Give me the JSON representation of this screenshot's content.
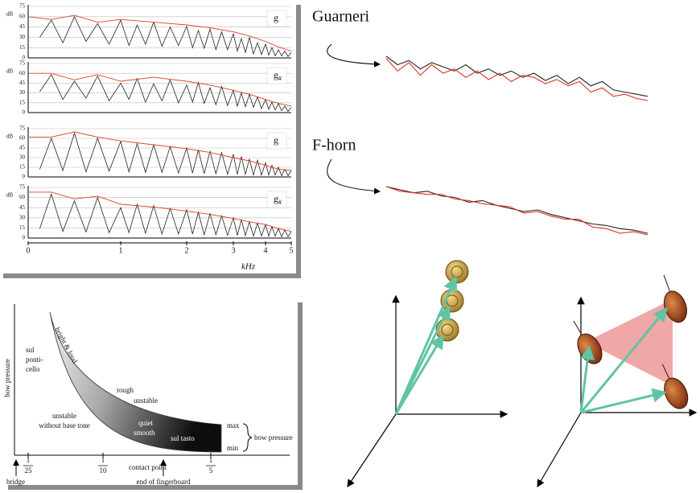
{
  "chart_data": [
    {
      "type": "line",
      "label": "g",
      "ylabel": "dB",
      "xlim": [
        0,
        5
      ],
      "ylim": [
        0,
        75
      ],
      "yticks": [
        0,
        15,
        30,
        45,
        60,
        75
      ],
      "grid": true,
      "x": [
        0.125,
        0.25,
        0.375,
        0.5,
        0.625,
        0.75,
        0.875,
        1,
        1.125,
        1.25,
        1.375,
        1.5,
        1.625,
        1.75,
        1.875,
        2,
        2.125,
        2.25,
        2.375,
        2.5,
        2.625,
        2.75,
        2.875,
        3,
        3.125,
        3.25,
        3.375,
        3.5,
        3.625,
        3.75,
        3.875,
        4,
        4.125,
        4.25,
        4.375,
        4.5,
        4.625,
        4.75,
        4.875,
        5
      ],
      "series": [
        {
          "color": "#222222",
          "values": [
            30,
            55,
            22,
            60,
            24,
            50,
            20,
            55,
            18,
            48,
            20,
            52,
            17,
            45,
            18,
            46,
            15,
            40,
            14,
            42,
            12,
            38,
            12,
            35,
            10,
            28,
            8,
            30,
            6,
            22,
            5,
            20,
            4,
            15,
            3,
            12,
            3,
            10,
            2,
            8
          ]
        },
        {
          "color": "#d9412b",
          "x": [
            0,
            0.25,
            0.5,
            0.75,
            1,
            1.5,
            2,
            2.5,
            3,
            3.5,
            4,
            4.5,
            5
          ],
          "values": [
            60,
            56,
            62,
            52,
            56,
            52,
            48,
            44,
            38,
            32,
            24,
            16,
            10
          ]
        }
      ]
    },
    {
      "type": "line",
      "label": "g",
      "label_sub": "#",
      "ylabel": "dB",
      "xlim": [
        0,
        5
      ],
      "ylim": [
        0,
        75
      ],
      "yticks": [
        0,
        15,
        30,
        45,
        60,
        75
      ],
      "grid": true,
      "x": [
        0.125,
        0.25,
        0.375,
        0.5,
        0.625,
        0.75,
        0.875,
        1,
        1.125,
        1.25,
        1.375,
        1.5,
        1.625,
        1.75,
        1.875,
        2,
        2.125,
        2.25,
        2.375,
        2.5,
        2.625,
        2.75,
        2.875,
        3,
        3.125,
        3.25,
        3.375,
        3.5,
        3.625,
        3.75,
        3.875,
        4,
        4.125,
        4.25,
        4.375,
        4.5,
        4.625,
        4.75,
        4.875,
        5
      ],
      "series": [
        {
          "color": "#222222",
          "values": [
            32,
            58,
            20,
            48,
            22,
            56,
            18,
            45,
            20,
            52,
            16,
            44,
            18,
            50,
            15,
            42,
            16,
            46,
            14,
            38,
            12,
            40,
            11,
            34,
            10,
            30,
            9,
            28,
            8,
            24,
            6,
            20,
            5,
            16,
            4,
            14,
            3,
            10,
            2,
            8
          ]
        },
        {
          "color": "#d9412b",
          "x": [
            0,
            0.25,
            0.5,
            0.75,
            1,
            1.5,
            2,
            2.5,
            3,
            3.5,
            4,
            4.5,
            5
          ],
          "values": [
            60,
            60,
            50,
            58,
            48,
            54,
            48,
            42,
            34,
            28,
            20,
            14,
            10
          ]
        }
      ]
    },
    {
      "type": "line",
      "label": "g",
      "ylabel": "dB",
      "xlim": [
        0,
        5
      ],
      "ylim": [
        0,
        75
      ],
      "yticks": [
        0,
        15,
        30,
        45,
        60,
        75
      ],
      "grid": true,
      "x": [
        0.125,
        0.25,
        0.375,
        0.5,
        0.625,
        0.75,
        0.875,
        1,
        1.125,
        1.25,
        1.375,
        1.5,
        1.625,
        1.75,
        1.875,
        2,
        2.125,
        2.25,
        2.375,
        2.5,
        2.625,
        2.75,
        2.875,
        3,
        3.125,
        3.25,
        3.375,
        3.5,
        3.625,
        3.75,
        3.875,
        4,
        4.125,
        4.25,
        4.375,
        4.5,
        4.625,
        4.75,
        4.875,
        5
      ],
      "series": [
        {
          "color": "#222222",
          "values": [
            12,
            60,
            10,
            68,
            8,
            60,
            9,
            55,
            8,
            52,
            7,
            50,
            7,
            47,
            6,
            45,
            6,
            42,
            5,
            40,
            5,
            38,
            4,
            35,
            4,
            32,
            4,
            28,
            3,
            26,
            3,
            22,
            3,
            18,
            3,
            15,
            2,
            12,
            2,
            10
          ]
        },
        {
          "color": "#d9412b",
          "x": [
            0,
            0.25,
            0.5,
            0.75,
            1,
            1.5,
            2,
            2.5,
            3,
            3.5,
            4,
            4.5,
            5
          ],
          "values": [
            62,
            62,
            70,
            62,
            56,
            50,
            44,
            38,
            30,
            25,
            18,
            12,
            10
          ]
        }
      ]
    },
    {
      "type": "line",
      "label": "g",
      "label_sub": "#",
      "ylabel": "dB",
      "xlabel": "kHz",
      "xlim": [
        0,
        5
      ],
      "xticks": [
        0,
        1,
        2,
        3,
        4,
        5
      ],
      "ylim": [
        0,
        75
      ],
      "yticks": [
        0,
        15,
        30,
        45,
        60,
        75
      ],
      "grid": true,
      "x": [
        0.125,
        0.25,
        0.375,
        0.5,
        0.625,
        0.75,
        0.875,
        1,
        1.125,
        1.25,
        1.375,
        1.5,
        1.625,
        1.75,
        1.875,
        2,
        2.125,
        2.25,
        2.375,
        2.5,
        2.625,
        2.75,
        2.875,
        3,
        3.125,
        3.25,
        3.375,
        3.5,
        3.625,
        3.75,
        3.875,
        4,
        4.125,
        4.25,
        4.375,
        4.5,
        4.625,
        4.75,
        4.875,
        5
      ],
      "series": [
        {
          "color": "#222222",
          "values": [
            14,
            65,
            10,
            55,
            9,
            60,
            8,
            45,
            8,
            50,
            7,
            48,
            6,
            44,
            6,
            42,
            6,
            38,
            5,
            36,
            5,
            33,
            4,
            30,
            4,
            27,
            4,
            24,
            3,
            22,
            3,
            20,
            3,
            17,
            3,
            14,
            2,
            12,
            2,
            10
          ]
        },
        {
          "color": "#d9412b",
          "x": [
            0,
            0.25,
            0.5,
            0.75,
            1,
            1.5,
            2,
            2.5,
            3,
            3.5,
            4,
            4.5,
            5
          ],
          "values": [
            68,
            68,
            58,
            62,
            50,
            46,
            40,
            35,
            29,
            24,
            20,
            14,
            10
          ]
        }
      ]
    },
    {
      "type": "line",
      "title": "Guarneri",
      "series": [
        {
          "color": "#222222",
          "values": [
            78,
            70,
            74,
            66,
            72,
            68,
            64,
            70,
            62,
            66,
            60,
            64,
            58,
            62,
            55,
            60,
            52,
            58,
            50,
            54,
            46,
            44,
            42,
            40
          ]
        },
        {
          "color": "#e0301e",
          "values": [
            76,
            64,
            72,
            60,
            70,
            62,
            66,
            58,
            64,
            56,
            62,
            54,
            60,
            58,
            52,
            56,
            50,
            54,
            44,
            48,
            40,
            42,
            38,
            36
          ]
        }
      ]
    },
    {
      "type": "line",
      "title": "F-horn",
      "series": [
        {
          "color": "#222222",
          "values": [
            60,
            58,
            56,
            57,
            54,
            53,
            50,
            51,
            48,
            46,
            44,
            45,
            42,
            40,
            38,
            36,
            35,
            33,
            32,
            30
          ]
        },
        {
          "color": "#e0301e",
          "values": [
            60,
            57,
            56,
            55,
            55,
            52,
            51,
            49,
            48,
            47,
            43,
            44,
            41,
            39,
            39,
            34,
            33,
            30,
            31,
            29
          ]
        }
      ]
    }
  ],
  "bow_diagram": {
    "y_label": "bow pressure",
    "sul_ponticello": [
      "sul",
      "ponti-",
      "cello"
    ],
    "bright_loud": "bright & loud",
    "rough": "rough",
    "unstable": "unstable",
    "no_base_tone": [
      "unstable",
      "without base tone"
    ],
    "quiet_smooth": [
      "quiet",
      "smooth"
    ],
    "sul_tasto": "sul tasto",
    "max": "max",
    "min": "min",
    "bracket_label": "bow pressure",
    "ticks": [
      {
        "numerator": "1",
        "denominator": "25"
      },
      {
        "numerator": "1",
        "denominator": "10"
      },
      {
        "numerator": "1",
        "denominator": "5"
      }
    ],
    "x_label": "contact point",
    "bridge": "bridge",
    "fingerboard": "end of fingerboard"
  }
}
